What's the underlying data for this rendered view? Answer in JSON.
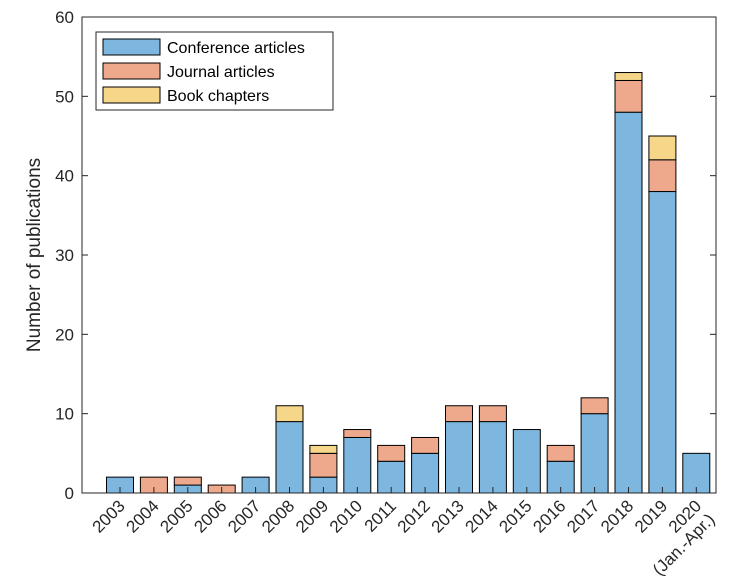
{
  "chart_data": {
    "type": "bar",
    "stacked": true,
    "title": "",
    "xlabel": "",
    "ylabel": "Number of publications",
    "ylim": [
      0,
      60
    ],
    "yticks": [
      0,
      10,
      20,
      30,
      40,
      50,
      60
    ],
    "grid": false,
    "legend_position": "top-left",
    "categories": [
      "2003",
      "2004",
      "2005",
      "2006",
      "2007",
      "2008",
      "2009",
      "2010",
      "2011",
      "2012",
      "2013",
      "2014",
      "2015",
      "2016",
      "2017",
      "2018",
      "2019",
      "2020\n(Jan.-Apr.)"
    ],
    "series": [
      {
        "name": "Conference articles",
        "color": "#7db7e0",
        "values": [
          2,
          0,
          1,
          0,
          2,
          9,
          2,
          7,
          4,
          5,
          9,
          9,
          8,
          4,
          10,
          48,
          38,
          5
        ]
      },
      {
        "name": "Journal articles",
        "color": "#eea98c",
        "values": [
          0,
          2,
          1,
          1,
          0,
          0,
          3,
          1,
          2,
          2,
          2,
          2,
          0,
          2,
          2,
          4,
          4,
          0
        ]
      },
      {
        "name": "Book chapters",
        "color": "#f6d78a",
        "values": [
          0,
          0,
          0,
          0,
          0,
          2,
          1,
          0,
          0,
          0,
          0,
          0,
          0,
          0,
          0,
          1,
          3,
          0
        ]
      }
    ]
  }
}
